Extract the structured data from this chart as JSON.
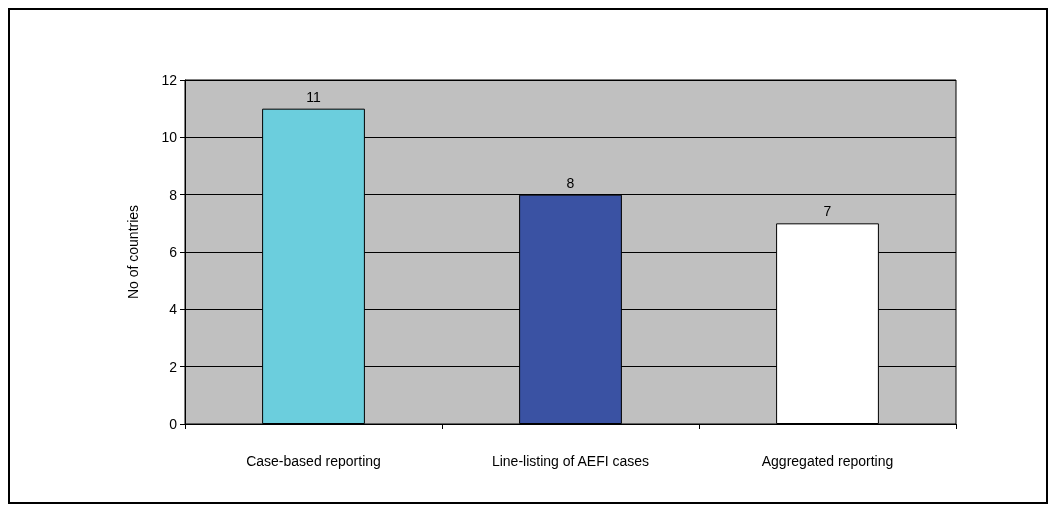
{
  "chart_data": {
    "type": "bar",
    "ylabel": "No of countries",
    "categories": [
      "Case-based reporting",
      "Line-listing of AEFI cases",
      "Aggregated reporting"
    ],
    "values": [
      11,
      8,
      7
    ],
    "colors": [
      "#6bcedd",
      "#3a52a3",
      "#ffffff"
    ],
    "ylim": [
      0,
      12
    ],
    "yticks": [
      0,
      2,
      4,
      6,
      8,
      10,
      12
    ],
    "grid": "y",
    "data_labels": true
  }
}
